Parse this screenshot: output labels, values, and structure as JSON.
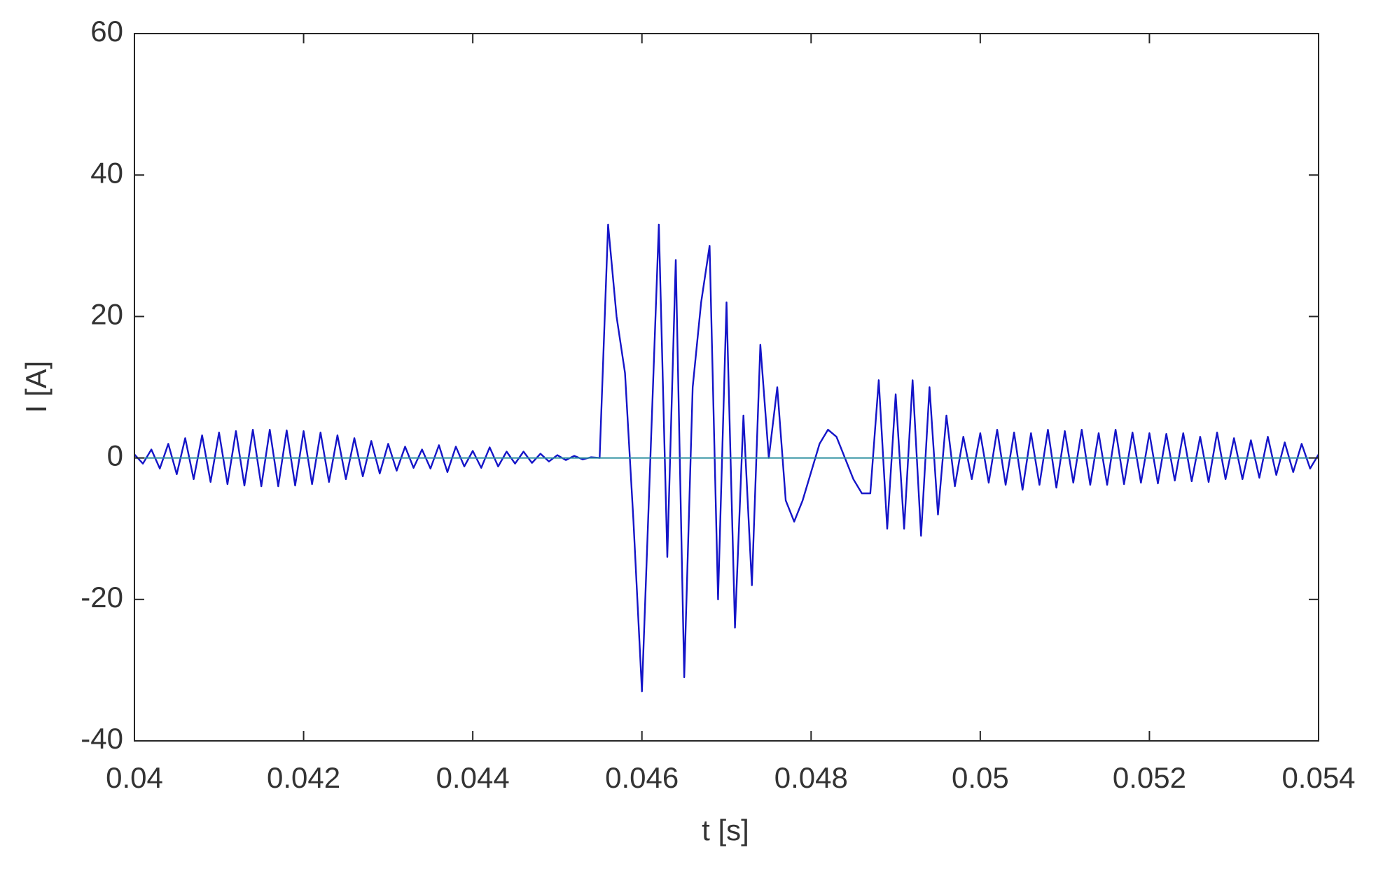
{
  "chart_data": {
    "type": "line",
    "xlabel": "t [s]",
    "ylabel": "I [A]",
    "xlim": [
      0.04,
      0.054
    ],
    "xticks": [
      0.04,
      0.042,
      0.044,
      0.046,
      0.048,
      0.05,
      0.052,
      0.054
    ],
    "ylim": [
      -40,
      60
    ],
    "yticks": [
      -40,
      -20,
      0,
      20,
      40,
      60
    ],
    "grid": false,
    "series": [
      {
        "color": "#1414c8",
        "x": [
          0.04,
          0.0401,
          0.0402,
          0.0403,
          0.0404,
          0.0405,
          0.0406,
          0.0407,
          0.0408,
          0.0409,
          0.041,
          0.0411,
          0.0412,
          0.0413,
          0.0414,
          0.0415,
          0.0416,
          0.0417,
          0.0418,
          0.0419,
          0.042,
          0.0421,
          0.0422,
          0.0423,
          0.0424,
          0.0425,
          0.0426,
          0.0427,
          0.0428,
          0.0429,
          0.043,
          0.0431,
          0.0432,
          0.0433,
          0.0434,
          0.0435,
          0.0436,
          0.0437,
          0.0438,
          0.0439,
          0.044,
          0.0441,
          0.0442,
          0.0443,
          0.0444,
          0.0445,
          0.0446,
          0.0447,
          0.0448,
          0.0449,
          0.045,
          0.0451,
          0.0452,
          0.0453,
          0.0454,
          0.0455,
          0.0456,
          0.0457,
          0.0458,
          0.0459,
          0.046,
          0.0461,
          0.0462,
          0.0463,
          0.0464,
          0.0465,
          0.0466,
          0.0467,
          0.0468,
          0.0469,
          0.047,
          0.0471,
          0.0472,
          0.0473,
          0.0474,
          0.0475,
          0.0476,
          0.0477,
          0.0478,
          0.0479,
          0.048,
          0.0481,
          0.0482,
          0.0483,
          0.0484,
          0.0485,
          0.0486,
          0.0487,
          0.0488,
          0.0489,
          0.049,
          0.0491,
          0.0492,
          0.0493,
          0.0494,
          0.0495,
          0.0496,
          0.0497,
          0.0498,
          0.0499,
          0.05,
          0.0501,
          0.0502,
          0.0503,
          0.0504,
          0.0505,
          0.0506,
          0.0507,
          0.0508,
          0.0509,
          0.051,
          0.0511,
          0.0512,
          0.0513,
          0.0514,
          0.0515,
          0.0516,
          0.0517,
          0.0518,
          0.0519,
          0.052,
          0.0521,
          0.0522,
          0.0523,
          0.0524,
          0.0525,
          0.0526,
          0.0527,
          0.0528,
          0.0529,
          0.053,
          0.0531,
          0.0532,
          0.0533,
          0.0534,
          0.0535,
          0.0536,
          0.0537,
          0.0538,
          0.0539,
          0.054
        ],
        "values": [
          0.5,
          -0.8,
          1.2,
          -1.5,
          2,
          -2.3,
          2.8,
          -3,
          3.2,
          -3.4,
          3.6,
          -3.7,
          3.8,
          -3.9,
          4,
          -4,
          4,
          -4,
          3.9,
          -3.9,
          3.8,
          -3.7,
          3.6,
          -3.4,
          3.2,
          -3,
          2.8,
          -2.6,
          2.4,
          -2.2,
          2,
          -1.8,
          1.6,
          -1.4,
          1.2,
          -1.5,
          1.8,
          -2,
          1.6,
          -1.2,
          1,
          -1.4,
          1.5,
          -1.2,
          0.9,
          -0.8,
          0.9,
          -0.7,
          0.6,
          -0.5,
          0.4,
          -0.3,
          0.3,
          -0.2,
          0.1,
          0,
          33,
          20,
          12,
          -9,
          -33,
          0,
          33,
          -14,
          28,
          -31,
          10,
          22,
          30,
          -20,
          22,
          -24,
          6,
          -18,
          16,
          0,
          10,
          -6,
          -9,
          -6,
          -2,
          2,
          4,
          3,
          0,
          -3,
          -5,
          -5,
          11,
          -10,
          9,
          -10,
          11,
          -11,
          10,
          -8,
          6,
          -4,
          3,
          -3,
          3.5,
          -3.5,
          4,
          -3.8,
          3.6,
          -4.5,
          3.5,
          -3.8,
          4,
          -4.2,
          3.8,
          -3.5,
          4,
          -3.8,
          3.5,
          -3.8,
          4,
          -3.7,
          3.6,
          -3.5,
          3.5,
          -3.6,
          3.4,
          -3.2,
          3.5,
          -3.3,
          3,
          -3.4,
          3.6,
          -3,
          2.8,
          -3,
          2.5,
          -2.8,
          3,
          -2.4,
          2.2,
          -2,
          2,
          -1.5,
          0.5
        ]
      },
      {
        "color": "#2b8f9f",
        "x": [
          0.04,
          0.054
        ],
        "values": [
          0,
          0
        ]
      }
    ]
  }
}
